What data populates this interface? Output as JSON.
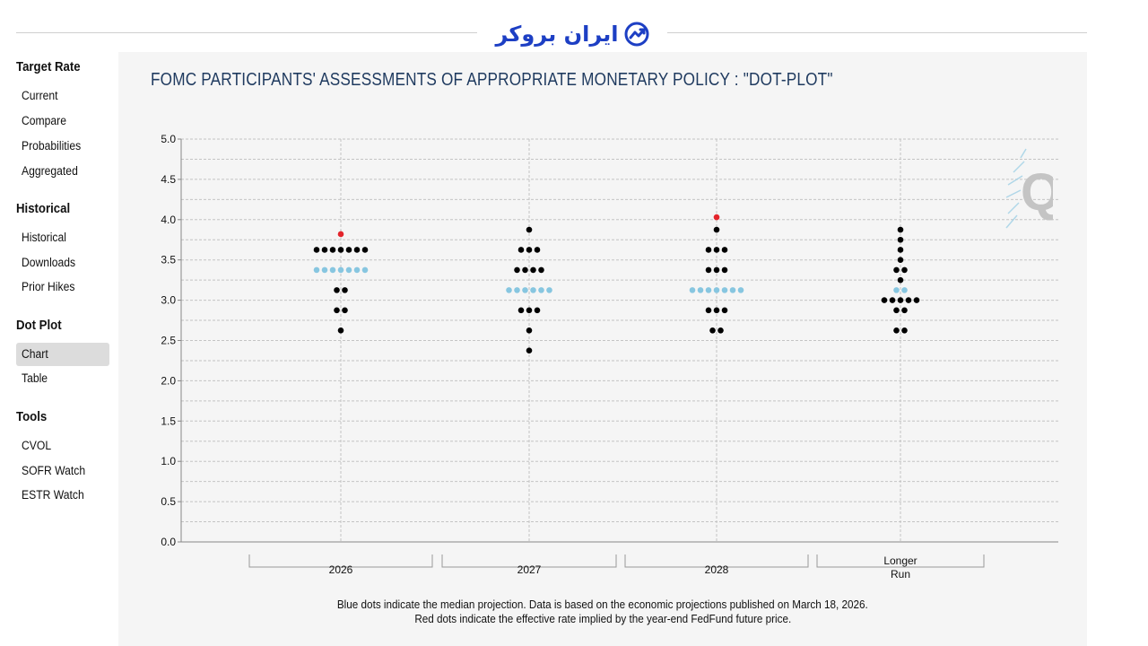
{
  "brand": {
    "logo_text": "ایران بروکر"
  },
  "sidebar": {
    "sections": [
      {
        "title": "Target Rate",
        "items": [
          "Current",
          "Compare",
          "Probabilities",
          "Aggregated"
        ]
      },
      {
        "title": "Historical",
        "items": [
          "Historical",
          "Downloads",
          "Prior Hikes"
        ]
      },
      {
        "title": "Dot Plot",
        "items": [
          "Chart",
          "Table"
        ]
      },
      {
        "title": "Tools",
        "items": [
          "CVOL",
          "SOFR Watch",
          "ESTR Watch"
        ]
      }
    ],
    "active_item": "Chart"
  },
  "chart_data": {
    "type": "scatter",
    "title": "FOMC PARTICIPANTS' ASSESSMENTS OF APPROPRIATE MONETARY POLICY : \"DOT-PLOT\"",
    "categories": [
      "2026",
      "2027",
      "2028",
      "Longer Run"
    ],
    "ylim": [
      0,
      5
    ],
    "yticks": [
      "0.0",
      "0.5",
      "1.0",
      "1.5",
      "2.0",
      "2.5",
      "3.0",
      "3.5",
      "4.0",
      "4.5",
      "5.0"
    ],
    "grid": true,
    "colors": {
      "participant": "#000000",
      "median": "#87c6e0",
      "implied": "#e3242b",
      "title": "#1f3a5f"
    },
    "series": [
      {
        "category": "2026",
        "participants": [
          {
            "rate": 3.625,
            "count": 7
          },
          {
            "rate": 3.125,
            "count": 2
          },
          {
            "rate": 2.875,
            "count": 2
          },
          {
            "rate": 2.625,
            "count": 1
          }
        ],
        "median": {
          "rate": 3.375,
          "count": 7
        },
        "implied": 3.82
      },
      {
        "category": "2027",
        "participants": [
          {
            "rate": 3.875,
            "count": 1
          },
          {
            "rate": 3.625,
            "count": 3
          },
          {
            "rate": 3.375,
            "count": 4
          },
          {
            "rate": 2.875,
            "count": 3
          },
          {
            "rate": 2.625,
            "count": 1
          },
          {
            "rate": 2.375,
            "count": 1
          }
        ],
        "median": {
          "rate": 3.125,
          "count": 6
        },
        "implied": null
      },
      {
        "category": "2028",
        "participants": [
          {
            "rate": 3.875,
            "count": 1
          },
          {
            "rate": 3.625,
            "count": 3
          },
          {
            "rate": 3.375,
            "count": 3
          },
          {
            "rate": 2.875,
            "count": 3
          },
          {
            "rate": 2.625,
            "count": 2
          }
        ],
        "median": {
          "rate": 3.125,
          "count": 7
        },
        "implied": 4.03
      },
      {
        "category": "Longer Run",
        "participants": [
          {
            "rate": 3.875,
            "count": 1
          },
          {
            "rate": 3.75,
            "count": 1
          },
          {
            "rate": 3.625,
            "count": 1
          },
          {
            "rate": 3.5,
            "count": 1
          },
          {
            "rate": 3.375,
            "count": 2
          },
          {
            "rate": 3.25,
            "count": 1
          },
          {
            "rate": 3.0,
            "count": 5
          },
          {
            "rate": 2.875,
            "count": 2
          },
          {
            "rate": 2.625,
            "count": 2
          }
        ],
        "median": {
          "rate": 3.125,
          "count": 2
        },
        "implied": null
      }
    ]
  },
  "footnotes": {
    "line1": "Blue dots indicate the median projection. Data is based on the economic projections published on March 18, 2026.",
    "line2": "Red dots indicate the effective rate implied by the year-end FedFund future price."
  }
}
